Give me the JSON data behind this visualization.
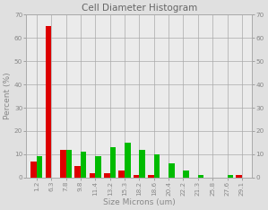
{
  "title": "Cell Diameter Histogram",
  "xlabel": "Size Microns (um)",
  "ylabel": "Percent (%)",
  "categories": [
    "1.2",
    "6.3",
    "7.8",
    "9.8",
    "11.4",
    "13.2",
    "15.3",
    "18.2",
    "18.6",
    "20.4",
    "22.2",
    "21.3",
    "25.8",
    "27.6",
    "29.1"
  ],
  "red_values": [
    7,
    65,
    12,
    5,
    2,
    2,
    3,
    1,
    1,
    0,
    0,
    0,
    0,
    0,
    1
  ],
  "green_values": [
    9,
    0,
    12,
    11,
    9,
    13,
    15,
    12,
    10,
    6,
    3,
    1,
    0,
    1,
    0
  ],
  "ylim": [
    0,
    70
  ],
  "yticks": [
    0,
    10,
    20,
    30,
    40,
    50,
    60,
    70
  ],
  "bar_width": 0.4,
  "red_color": "#dd0000",
  "green_color": "#00bb00",
  "title_color": "#666666",
  "axis_color": "#888888",
  "grid_color": "#aaaaaa",
  "plot_bg_color": "#ebebeb",
  "fig_bg_color": "#e0e0e0",
  "title_fontsize": 7.5,
  "label_fontsize": 6.5,
  "tick_fontsize": 5.2
}
